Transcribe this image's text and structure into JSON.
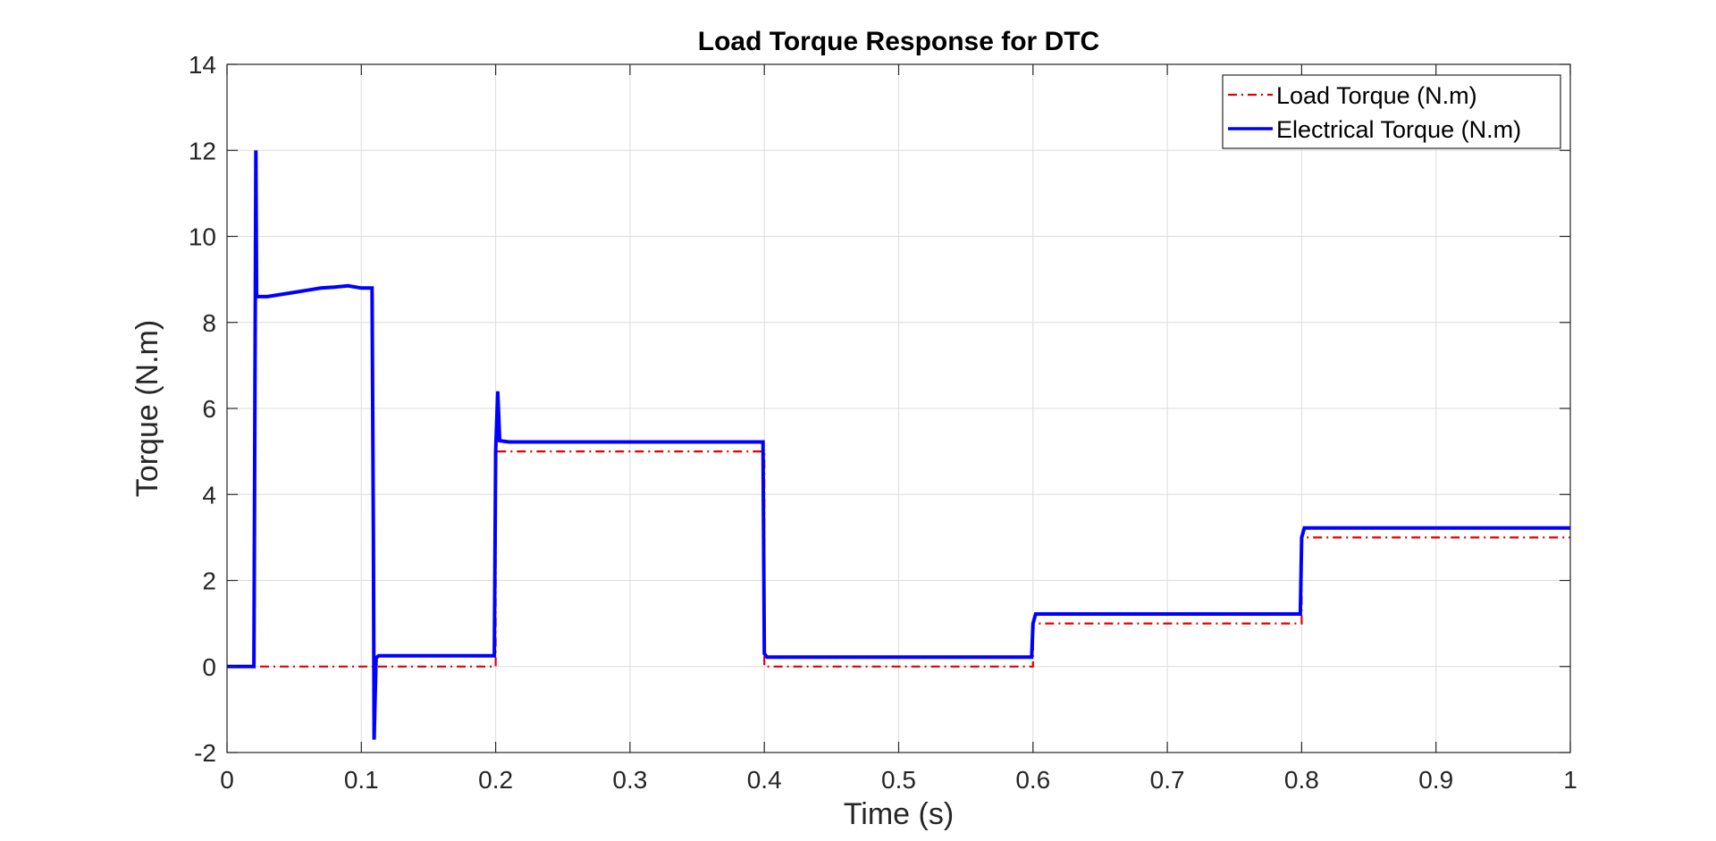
{
  "chart_data": {
    "type": "line",
    "title": "Load Torque Response for DTC",
    "xlabel": "Time (s)",
    "ylabel": "Torque (N.m)",
    "xlim": [
      0,
      1
    ],
    "ylim": [
      -2,
      14
    ],
    "xticks": [
      0,
      0.1,
      0.2,
      0.3,
      0.4,
      0.5,
      0.6,
      0.7,
      0.8,
      0.9,
      1
    ],
    "xtick_labels": [
      "0",
      "0.1",
      "0.2",
      "0.3",
      "0.4",
      "0.5",
      "0.6",
      "0.7",
      "0.8",
      "0.9",
      "1"
    ],
    "yticks": [
      -2,
      0,
      2,
      4,
      6,
      8,
      10,
      12,
      14
    ],
    "ytick_labels": [
      "-2",
      "0",
      "2",
      "4",
      "6",
      "8",
      "10",
      "12",
      "14"
    ],
    "grid": true,
    "legend_position": "top-right",
    "series": [
      {
        "name": "Load Torque (N.m)",
        "color": "#e00000",
        "style": "dash-dot",
        "x": [
          0.01,
          0.2,
          0.2,
          0.4,
          0.4,
          0.6,
          0.6,
          0.8,
          0.8,
          1.0
        ],
        "y": [
          0,
          0,
          5,
          5,
          0,
          0,
          1,
          1,
          3,
          3
        ]
      },
      {
        "name": "Electrical Torque (N.m)",
        "color": "#0000ff",
        "style": "solid",
        "x": [
          0.0,
          0.02,
          0.0215,
          0.022,
          0.025,
          0.03,
          0.04,
          0.05,
          0.06,
          0.07,
          0.08,
          0.09,
          0.1,
          0.108,
          0.109,
          0.1095,
          0.111,
          0.113,
          0.12,
          0.15,
          0.18,
          0.199,
          0.2,
          0.2015,
          0.203,
          0.21,
          0.25,
          0.3,
          0.35,
          0.399,
          0.4,
          0.402,
          0.405,
          0.45,
          0.5,
          0.55,
          0.599,
          0.6,
          0.602,
          0.605,
          0.65,
          0.7,
          0.75,
          0.799,
          0.8,
          0.802,
          0.805,
          0.85,
          0.9,
          0.95,
          1.0
        ],
        "y": [
          0,
          0,
          12,
          8.6,
          8.6,
          8.6,
          8.65,
          8.7,
          8.75,
          8.8,
          8.82,
          8.85,
          8.8,
          8.8,
          3.0,
          -1.7,
          0.2,
          0.25,
          0.25,
          0.25,
          0.25,
          0.25,
          5.0,
          6.4,
          5.25,
          5.22,
          5.22,
          5.22,
          5.22,
          5.22,
          0.3,
          0.22,
          0.22,
          0.22,
          0.22,
          0.22,
          0.22,
          1.0,
          1.22,
          1.22,
          1.22,
          1.22,
          1.22,
          1.22,
          3.0,
          3.22,
          3.22,
          3.22,
          3.22,
          3.22,
          3.22
        ]
      }
    ]
  }
}
